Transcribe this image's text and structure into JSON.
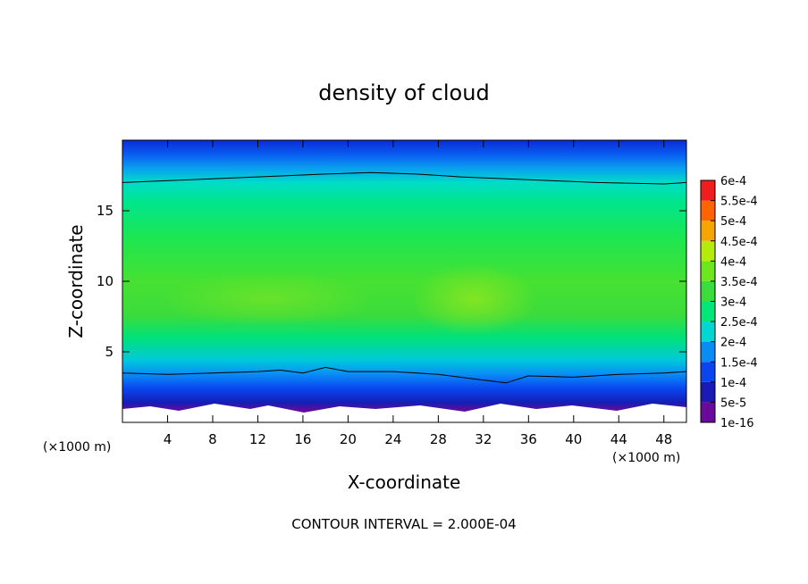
{
  "chart_data": {
    "type": "heatmap",
    "title": "density of cloud",
    "xlabel": "X-coordinate",
    "ylabel": "Z-coordinate",
    "x_unit": "(×1000 m)",
    "y_unit": "(×1000 m)",
    "xlim": [
      0,
      50
    ],
    "ylim": [
      0,
      20
    ],
    "x_ticks": [
      4,
      8,
      12,
      16,
      20,
      24,
      28,
      32,
      36,
      40,
      44,
      48
    ],
    "y_ticks": [
      5,
      10,
      15
    ],
    "contour_interval_text": "CONTOUR INTERVAL = 2.000E-04",
    "colorbar": {
      "levels": [
        "1e-16",
        "5e-5",
        "1e-4",
        "1.5e-4",
        "2e-4",
        "2.5e-4",
        "3e-4",
        "3.5e-4",
        "4e-4",
        "4.5e-4",
        "5e-4",
        "5.5e-4",
        "6e-4"
      ],
      "values": [
        0,
        5e-05,
        0.0001,
        0.00015,
        0.0002,
        0.00025,
        0.0003,
        0.00035,
        0.0004,
        0.00045,
        0.0005,
        0.00055,
        0.0006
      ],
      "colors": [
        "#6a0a9c",
        "#1a1ab4",
        "#0a46f0",
        "#0a8cf5",
        "#00d7d2",
        "#00e678",
        "#3cdc3c",
        "#6ee61e",
        "#b4eb0a",
        "#f5a500",
        "#ff6400",
        "#f01e1e",
        "#f58c8c"
      ]
    },
    "contour_lines": [
      {
        "level": 0.0001,
        "points": [
          [
            0,
            3.5
          ],
          [
            4,
            3.4
          ],
          [
            8,
            3.5
          ],
          [
            12,
            3.6
          ],
          [
            14,
            3.7
          ],
          [
            16,
            3.5
          ],
          [
            18,
            3.9
          ],
          [
            20,
            3.6
          ],
          [
            24,
            3.6
          ],
          [
            28,
            3.4
          ],
          [
            32,
            3.0
          ],
          [
            34,
            2.8
          ],
          [
            36,
            3.3
          ],
          [
            40,
            3.2
          ],
          [
            44,
            3.4
          ],
          [
            48,
            3.5
          ],
          [
            50,
            3.6
          ]
        ]
      },
      {
        "level": 0.0002,
        "points": [
          [
            0,
            17.0
          ],
          [
            6,
            17.2
          ],
          [
            12,
            17.4
          ],
          [
            18,
            17.6
          ],
          [
            22,
            17.7
          ],
          [
            26,
            17.6
          ],
          [
            30,
            17.4
          ],
          [
            36,
            17.2
          ],
          [
            42,
            17.0
          ],
          [
            48,
            16.9
          ],
          [
            50,
            17.0
          ]
        ]
      }
    ]
  }
}
